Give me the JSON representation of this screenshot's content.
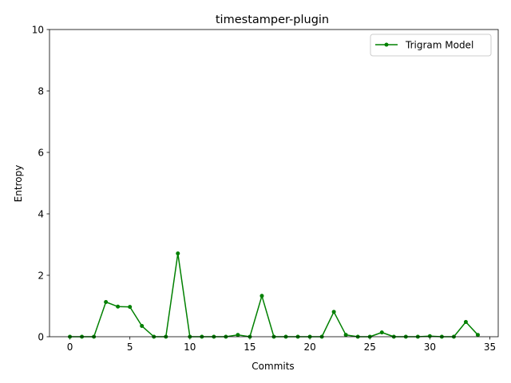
{
  "chart_data": {
    "type": "line",
    "title": "timestamper-plugin",
    "xlabel": "Commits",
    "ylabel": "Entropy",
    "xlim": [
      -1.7,
      35.7
    ],
    "ylim": [
      0,
      10
    ],
    "xticks": [
      0,
      5,
      10,
      15,
      20,
      25,
      30,
      35
    ],
    "yticks": [
      0,
      2,
      4,
      6,
      8,
      10
    ],
    "grid": false,
    "legend_position": "top-right",
    "series": [
      {
        "name": "Trigram Model",
        "color": "#008000",
        "marker": "circle",
        "x": [
          0,
          1,
          2,
          3,
          4,
          5,
          6,
          7,
          8,
          9,
          10,
          11,
          12,
          13,
          14,
          15,
          16,
          17,
          18,
          19,
          20,
          21,
          22,
          23,
          24,
          25,
          26,
          27,
          28,
          29,
          30,
          31,
          32,
          33,
          34
        ],
        "y": [
          0.0,
          0.0,
          0.0,
          1.13,
          0.98,
          0.97,
          0.35,
          0.0,
          0.0,
          2.71,
          0.0,
          0.0,
          0.0,
          0.0,
          0.06,
          0.0,
          1.33,
          0.0,
          0.0,
          0.0,
          0.0,
          0.0,
          0.81,
          0.06,
          0.0,
          0.0,
          0.14,
          0.0,
          0.0,
          0.0,
          0.02,
          0.0,
          0.0,
          0.48,
          0.06
        ]
      }
    ]
  }
}
